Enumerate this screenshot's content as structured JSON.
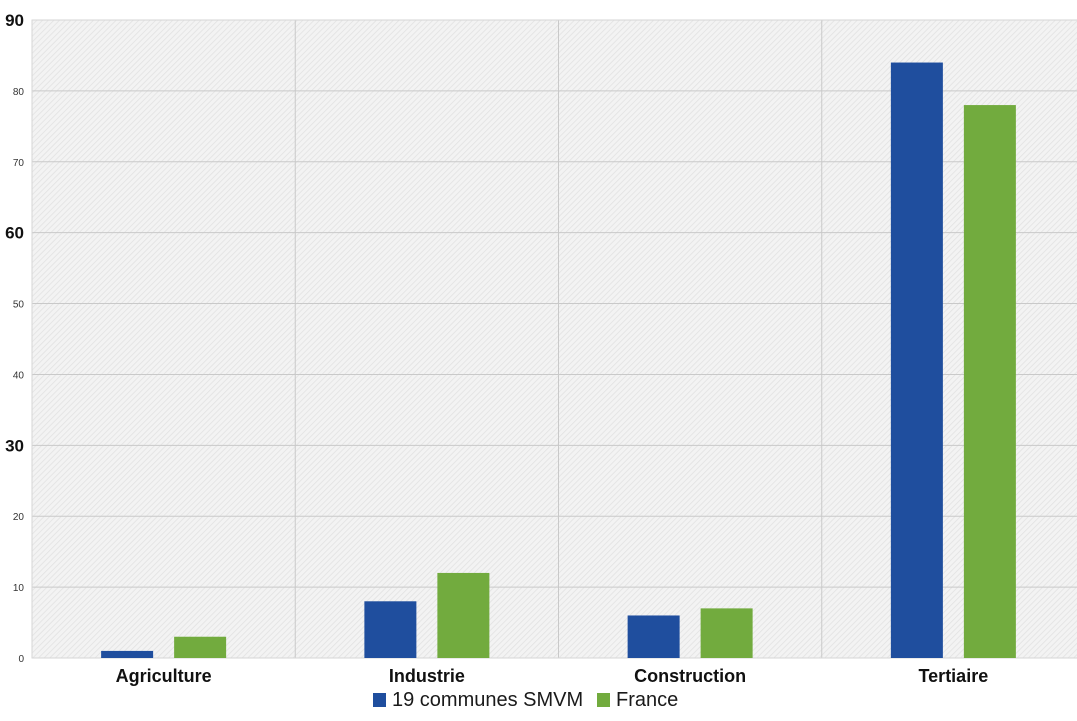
{
  "chart_data": {
    "type": "bar",
    "title": "",
    "xlabel": "",
    "ylabel": "",
    "categories": [
      "Agriculture",
      "Industrie",
      "Construction",
      "Tertiaire"
    ],
    "series": [
      {
        "name": "19 communes SMVM",
        "color": "#1f4e9e",
        "values": [
          1,
          8,
          6,
          84
        ]
      },
      {
        "name": "France",
        "color": "#72ab3e",
        "values": [
          3,
          12,
          7,
          78
        ]
      }
    ],
    "ylim": [
      0,
      90
    ],
    "yticks": [
      "0",
      "10",
      "20",
      "30",
      "40",
      "50",
      "60",
      "70",
      "80",
      "90"
    ],
    "major_ticks": [
      "30",
      "60",
      "90"
    ],
    "grid": true,
    "legend_position": "bottom",
    "plot_background": "hatched light grey"
  }
}
